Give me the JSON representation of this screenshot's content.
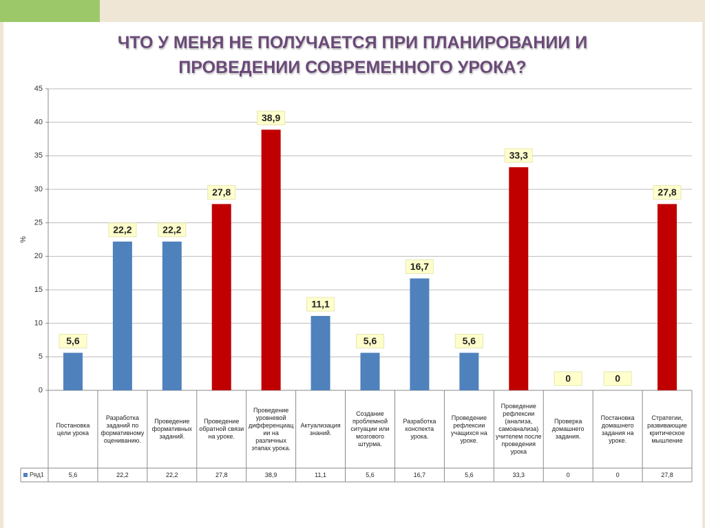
{
  "chart_data": {
    "type": "bar",
    "title": [
      "ЧТО У МЕНЯ НЕ ПОЛУЧАЕТСЯ ПРИ ПЛАНИРОВАНИИ И",
      "ПРОВЕДЕНИИ СОВРЕМЕННОГО УРОКА?"
    ],
    "y_label": "%",
    "categories": [
      "Постановка цели урока",
      "Разработка заданий по формативному оцениванию.",
      "Проведение формативных заданий.",
      "Проведение обратной связи на уроке.",
      "Проведение уровневой дифференциации на различных этапах урока.",
      "Актуализация знаний.",
      "Создание проблемной ситуации или мозгового штурма.",
      "Разработка конспекта урока.",
      "Проведение рефлексии учащихся на уроке.",
      "Проведение рефлексии (анализа, самоанализа) учителем после проведения урока",
      "Проверка домашнего задания.",
      "Постановка домашнего задания на уроке.",
      "Стратегии, развивающие критическое мышление"
    ],
    "series": [
      {
        "name": "Ряд1",
        "color": "#4f81bd",
        "values": [
          5.6,
          22.2,
          22.2,
          27.8,
          38.9,
          11.1,
          5.6,
          16.7,
          5.6,
          33.3,
          0,
          0,
          27.8
        ],
        "value_labels": [
          "5,6",
          "22,2",
          "22,2",
          "27,8",
          "38,9",
          "11,1",
          "5,6",
          "16,7",
          "5,6",
          "33,3",
          "0",
          "0",
          "27,8"
        ],
        "colors": [
          "#4f81bd",
          "#4f81bd",
          "#4f81bd",
          "#c00000",
          "#c00000",
          "#4f81bd",
          "#4f81bd",
          "#4f81bd",
          "#4f81bd",
          "#c00000",
          "#4f81bd",
          "#4f81bd",
          "#c00000"
        ]
      }
    ],
    "ylim": [
      0,
      45
    ],
    "yticks": [
      0,
      5,
      10,
      15,
      20,
      25,
      30,
      35,
      40,
      45
    ],
    "grid": true
  }
}
